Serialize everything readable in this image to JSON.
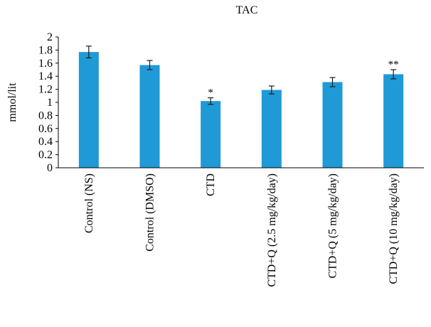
{
  "chart_data": {
    "type": "bar",
    "title": "TAC",
    "xlabel": "",
    "ylabel": "mmol/lit",
    "ylim": [
      0,
      2
    ],
    "yticks": [
      "0",
      "0.2",
      "0.4",
      "0.6",
      "0.8",
      "1",
      "1.2",
      "1.4",
      "1.6",
      "1.8",
      "2"
    ],
    "grid": false,
    "bar_color": "#1f9ad6",
    "categories": [
      "Control (NS)",
      "Control (DMSO)",
      "CTD",
      "CTD+Q (2.5 mg/kg/day)",
      "CTD+Q (5 mg/kg/day)",
      "CTD+Q (10 mg/kg/day)"
    ],
    "values": [
      1.77,
      1.57,
      1.02,
      1.19,
      1.31,
      1.43
    ],
    "errors": [
      0.09,
      0.07,
      0.05,
      0.06,
      0.07,
      0.07
    ],
    "annotations": [
      "",
      "",
      "*",
      "",
      "",
      "**"
    ]
  }
}
